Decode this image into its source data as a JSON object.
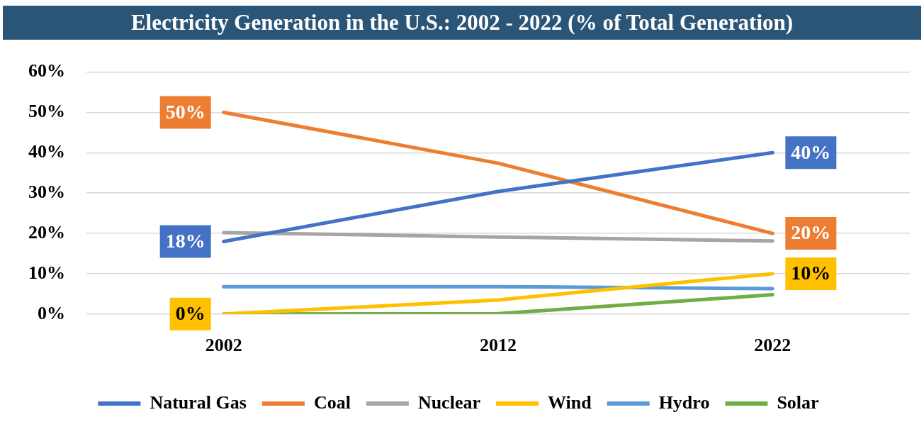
{
  "chart_data": {
    "type": "line",
    "title": "Electricity Generation in the U.S.: 2002 - 2022 (% of Total Generation)",
    "categories": [
      "2002",
      "2012",
      "2022"
    ],
    "series": [
      {
        "name": "Natural Gas",
        "color": "#4472c4",
        "values": [
          18,
          30.4,
          40
        ],
        "value_labels": [
          "18%",
          null,
          "40%"
        ]
      },
      {
        "name": "Coal",
        "color": "#ed7d31",
        "values": [
          50,
          37.4,
          20
        ],
        "value_labels": [
          "50%",
          null,
          "20%"
        ]
      },
      {
        "name": "Nuclear",
        "color": "#a5a5a5",
        "values": [
          20.2,
          19.1,
          18.1
        ]
      },
      {
        "name": "Wind",
        "color": "#ffc000",
        "values": [
          0,
          3.5,
          10
        ],
        "value_labels": [
          "0%",
          null,
          "10%"
        ]
      },
      {
        "name": "Hydro",
        "color": "#5b9bd5",
        "values": [
          6.8,
          6.8,
          6.3
        ]
      },
      {
        "name": "Solar",
        "color": "#70ad47",
        "values": [
          0,
          0.1,
          4.8
        ]
      }
    ],
    "ylim": [
      0,
      60
    ],
    "yticks": [
      {
        "value": 0,
        "label": "0%"
      },
      {
        "value": 10,
        "label": "10%"
      },
      {
        "value": 20,
        "label": "20%"
      },
      {
        "value": 30,
        "label": "30%"
      },
      {
        "value": 40,
        "label": "40%"
      },
      {
        "value": 50,
        "label": "50%"
      },
      {
        "value": 60,
        "label": "60%"
      }
    ],
    "grid": "y",
    "legend": "bottom",
    "marker": "none",
    "line_style": "solid"
  }
}
